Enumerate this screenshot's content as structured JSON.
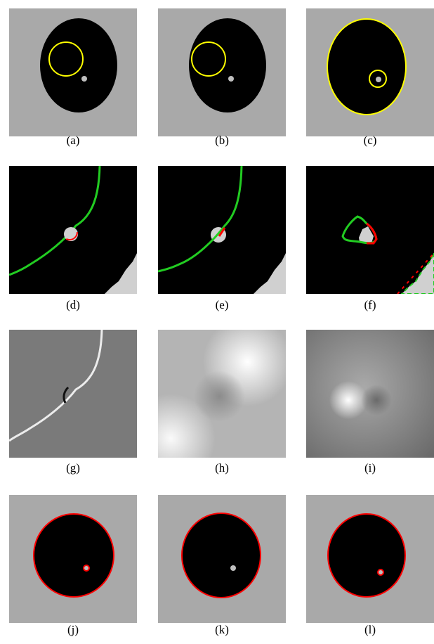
{
  "figure": {
    "panels": [
      {
        "id": "a",
        "caption": "(a)"
      },
      {
        "id": "b",
        "caption": "(b)"
      },
      {
        "id": "c",
        "caption": "(c)"
      },
      {
        "id": "d",
        "caption": "(d)"
      },
      {
        "id": "e",
        "caption": "(e)"
      },
      {
        "id": "f",
        "caption": "(f)"
      },
      {
        "id": "g",
        "caption": "(g)"
      },
      {
        "id": "h",
        "caption": "(h)"
      },
      {
        "id": "i",
        "caption": "(i)"
      },
      {
        "id": "j",
        "caption": "(j)"
      },
      {
        "id": "k",
        "caption": "(k)"
      },
      {
        "id": "l",
        "caption": "(l)"
      }
    ]
  },
  "colors": {
    "background_gray": "#a9a9a9",
    "object": "#000000",
    "small_blob": "#bfbfbf",
    "contour_yellow": "#ffff00",
    "contour_green": "#22cc22",
    "contour_red": "#ff0000"
  }
}
